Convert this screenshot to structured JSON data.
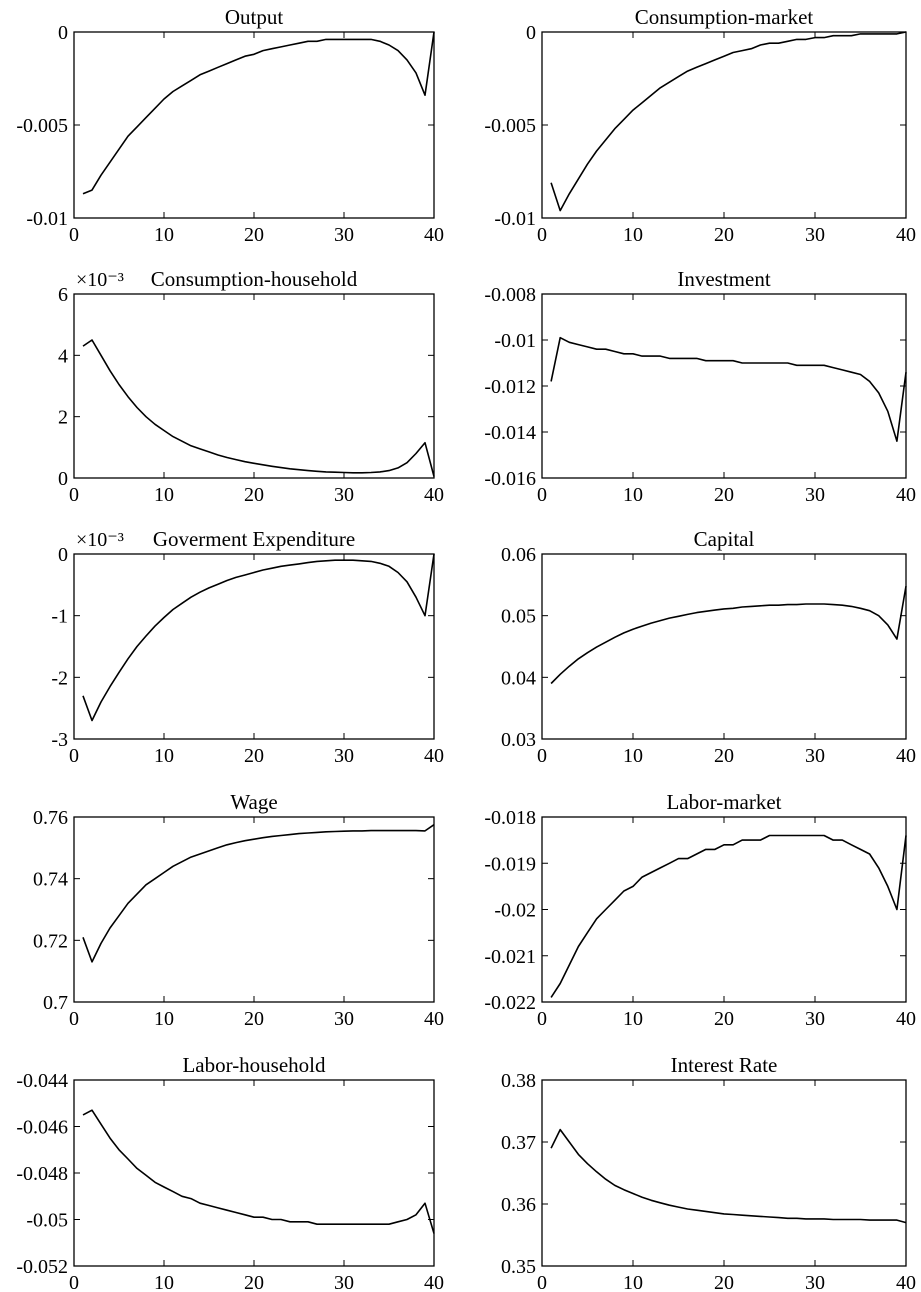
{
  "chart_data": [
    {
      "type": "line",
      "title": "Output",
      "scale_label": "",
      "xlim": [
        0,
        40
      ],
      "ylim": [
        -0.01,
        0
      ],
      "xticks": [
        "0",
        "10",
        "20",
        "30",
        "40"
      ],
      "yticks": [
        "-0.01",
        "-0.005",
        "0"
      ],
      "x": [
        1,
        2,
        3,
        4,
        5,
        6,
        7,
        8,
        9,
        10,
        11,
        12,
        13,
        14,
        15,
        16,
        17,
        18,
        19,
        20,
        21,
        22,
        23,
        24,
        25,
        26,
        27,
        28,
        29,
        30,
        31,
        32,
        33,
        34,
        35,
        36,
        37,
        38,
        39,
        40
      ],
      "y": [
        -0.0087,
        -0.0085,
        -0.0077,
        -0.007,
        -0.0063,
        -0.0056,
        -0.0051,
        -0.0046,
        -0.0041,
        -0.0036,
        -0.0032,
        -0.0029,
        -0.0026,
        -0.0023,
        -0.0021,
        -0.0019,
        -0.0017,
        -0.0015,
        -0.0013,
        -0.0012,
        -0.001,
        -0.0009,
        -0.0008,
        -0.0007,
        -0.0006,
        -0.0005,
        -0.0005,
        -0.0004,
        -0.0004,
        -0.0004,
        -0.0004,
        -0.0004,
        -0.0004,
        -0.0005,
        -0.0007,
        -0.001,
        -0.0015,
        -0.0022,
        -0.0034,
        0
      ]
    },
    {
      "type": "line",
      "title": "Consumption-market",
      "scale_label": "",
      "xlim": [
        0,
        40
      ],
      "ylim": [
        -0.01,
        0
      ],
      "xticks": [
        "0",
        "10",
        "20",
        "30",
        "40"
      ],
      "yticks": [
        "-0.01",
        "-0.005",
        "0"
      ],
      "x": [
        1,
        2,
        3,
        4,
        5,
        6,
        7,
        8,
        9,
        10,
        11,
        12,
        13,
        14,
        15,
        16,
        17,
        18,
        19,
        20,
        21,
        22,
        23,
        24,
        25,
        26,
        27,
        28,
        29,
        30,
        31,
        32,
        33,
        34,
        35,
        36,
        37,
        38,
        39,
        40
      ],
      "y": [
        -0.0081,
        -0.0096,
        -0.0087,
        -0.0079,
        -0.0071,
        -0.0064,
        -0.0058,
        -0.0052,
        -0.0047,
        -0.0042,
        -0.0038,
        -0.0034,
        -0.003,
        -0.0027,
        -0.0024,
        -0.0021,
        -0.0019,
        -0.0017,
        -0.0015,
        -0.0013,
        -0.0011,
        -0.001,
        -0.0009,
        -0.0007,
        -0.0006,
        -0.0006,
        -0.0005,
        -0.0004,
        -0.0004,
        -0.0003,
        -0.0003,
        -0.0002,
        -0.0002,
        -0.0002,
        -0.0001,
        -0.0001,
        -0.0001,
        -0.0001,
        -0.0001,
        0
      ]
    },
    {
      "type": "line",
      "title": "Consumption-household",
      "scale_label": "×10⁻³",
      "xlim": [
        0,
        40
      ],
      "ylim": [
        0,
        6
      ],
      "xticks": [
        "0",
        "10",
        "20",
        "30",
        "40"
      ],
      "yticks": [
        "0",
        "2",
        "4",
        "6"
      ],
      "x": [
        1,
        2,
        3,
        4,
        5,
        6,
        7,
        8,
        9,
        10,
        11,
        12,
        13,
        14,
        15,
        16,
        17,
        18,
        19,
        20,
        21,
        22,
        23,
        24,
        25,
        26,
        27,
        28,
        29,
        30,
        31,
        32,
        33,
        34,
        35,
        36,
        37,
        38,
        39,
        40
      ],
      "y": [
        4.3,
        4.5,
        4,
        3.5,
        3.05,
        2.65,
        2.3,
        2.0,
        1.75,
        1.55,
        1.35,
        1.2,
        1.05,
        0.95,
        0.85,
        0.75,
        0.67,
        0.6,
        0.53,
        0.48,
        0.43,
        0.38,
        0.34,
        0.3,
        0.27,
        0.24,
        0.22,
        0.2,
        0.19,
        0.18,
        0.17,
        0.17,
        0.18,
        0.2,
        0.24,
        0.33,
        0.5,
        0.8,
        1.15,
        0.05
      ]
    },
    {
      "type": "line",
      "title": "Investment",
      "scale_label": "",
      "xlim": [
        0,
        40
      ],
      "ylim": [
        -0.016,
        -0.008
      ],
      "xticks": [
        "0",
        "10",
        "20",
        "30",
        "40"
      ],
      "yticks": [
        "-0.016",
        "-0.014",
        "-0.012",
        "-0.01",
        "-0.008"
      ],
      "x": [
        1,
        2,
        3,
        4,
        5,
        6,
        7,
        8,
        9,
        10,
        11,
        12,
        13,
        14,
        15,
        16,
        17,
        18,
        19,
        20,
        21,
        22,
        23,
        24,
        25,
        26,
        27,
        28,
        29,
        30,
        31,
        32,
        33,
        34,
        35,
        36,
        37,
        38,
        39,
        40
      ],
      "y": [
        -0.0118,
        -0.0099,
        -0.0101,
        -0.0102,
        -0.0103,
        -0.0104,
        -0.0104,
        -0.0105,
        -0.0106,
        -0.0106,
        -0.0107,
        -0.0107,
        -0.0107,
        -0.0108,
        -0.0108,
        -0.0108,
        -0.0108,
        -0.0109,
        -0.0109,
        -0.0109,
        -0.0109,
        -0.011,
        -0.011,
        -0.011,
        -0.011,
        -0.011,
        -0.011,
        -0.0111,
        -0.0111,
        -0.0111,
        -0.0111,
        -0.0112,
        -0.0113,
        -0.0114,
        -0.0115,
        -0.0118,
        -0.0123,
        -0.0131,
        -0.0144,
        -0.0114
      ]
    },
    {
      "type": "line",
      "title": "Goverment Expenditure",
      "scale_label": "×10⁻³",
      "xlim": [
        0,
        40
      ],
      "ylim": [
        -3,
        0
      ],
      "xticks": [
        "0",
        "10",
        "20",
        "30",
        "40"
      ],
      "yticks": [
        "-3",
        "-2",
        "-1",
        "0"
      ],
      "x": [
        1,
        2,
        3,
        4,
        5,
        6,
        7,
        8,
        9,
        10,
        11,
        12,
        13,
        14,
        15,
        16,
        17,
        18,
        19,
        20,
        21,
        22,
        23,
        24,
        25,
        26,
        27,
        28,
        29,
        30,
        31,
        32,
        33,
        34,
        35,
        36,
        37,
        38,
        39,
        40
      ],
      "y": [
        -2.3,
        -2.7,
        -2.4,
        -2.15,
        -1.92,
        -1.7,
        -1.5,
        -1.33,
        -1.17,
        -1.03,
        -0.9,
        -0.8,
        -0.7,
        -0.62,
        -0.55,
        -0.49,
        -0.43,
        -0.38,
        -0.34,
        -0.3,
        -0.26,
        -0.23,
        -0.2,
        -0.18,
        -0.16,
        -0.14,
        -0.12,
        -0.11,
        -0.1,
        -0.1,
        -0.1,
        -0.11,
        -0.12,
        -0.15,
        -0.2,
        -0.3,
        -0.45,
        -0.7,
        -1.0,
        0
      ]
    },
    {
      "type": "line",
      "title": "Capital",
      "scale_label": "",
      "xlim": [
        0,
        40
      ],
      "ylim": [
        0.03,
        0.06
      ],
      "xticks": [
        "0",
        "10",
        "20",
        "30",
        "40"
      ],
      "yticks": [
        "0.03",
        "0.04",
        "0.05",
        "0.06"
      ],
      "x": [
        1,
        2,
        3,
        4,
        5,
        6,
        7,
        8,
        9,
        10,
        11,
        12,
        13,
        14,
        15,
        16,
        17,
        18,
        19,
        20,
        21,
        22,
        23,
        24,
        25,
        26,
        27,
        28,
        29,
        30,
        31,
        32,
        33,
        34,
        35,
        36,
        37,
        38,
        39,
        40
      ],
      "y": [
        0.039,
        0.0405,
        0.0418,
        0.043,
        0.044,
        0.0449,
        0.0457,
        0.0465,
        0.0472,
        0.0478,
        0.0483,
        0.0488,
        0.0492,
        0.0496,
        0.0499,
        0.0502,
        0.0505,
        0.0507,
        0.0509,
        0.0511,
        0.0512,
        0.0514,
        0.0515,
        0.0516,
        0.0517,
        0.0517,
        0.0518,
        0.0518,
        0.0519,
        0.0519,
        0.0519,
        0.0518,
        0.0517,
        0.0515,
        0.0512,
        0.0508,
        0.05,
        0.0485,
        0.0462,
        0.0548
      ]
    },
    {
      "type": "line",
      "title": "Wage",
      "scale_label": "",
      "xlim": [
        0,
        40
      ],
      "ylim": [
        0.7,
        0.76
      ],
      "xticks": [
        "0",
        "10",
        "20",
        "30",
        "40"
      ],
      "yticks": [
        "0.7",
        "0.72",
        "0.74",
        "0.76"
      ],
      "x": [
        1,
        2,
        3,
        4,
        5,
        6,
        7,
        8,
        9,
        10,
        11,
        12,
        13,
        14,
        15,
        16,
        17,
        18,
        19,
        20,
        21,
        22,
        23,
        24,
        25,
        26,
        27,
        28,
        29,
        30,
        31,
        32,
        33,
        34,
        35,
        36,
        37,
        38,
        39,
        40
      ],
      "y": [
        0.721,
        0.713,
        0.719,
        0.724,
        0.728,
        0.732,
        0.735,
        0.738,
        0.74,
        0.742,
        0.744,
        0.7455,
        0.747,
        0.748,
        0.749,
        0.75,
        0.751,
        0.7517,
        0.7523,
        0.7528,
        0.7533,
        0.7537,
        0.754,
        0.7543,
        0.7546,
        0.7548,
        0.755,
        0.7552,
        0.7553,
        0.7554,
        0.7555,
        0.7555,
        0.7556,
        0.7556,
        0.7556,
        0.7556,
        0.7556,
        0.7556,
        0.7555,
        0.7575
      ]
    },
    {
      "type": "line",
      "title": "Labor-market",
      "scale_label": "",
      "xlim": [
        0,
        40
      ],
      "ylim": [
        -0.022,
        -0.018
      ],
      "xticks": [
        "0",
        "10",
        "20",
        "30",
        "40"
      ],
      "yticks": [
        "-0.022",
        "-0.021",
        "-0.02",
        "-0.019",
        "-0.018"
      ],
      "x": [
        1,
        2,
        3,
        4,
        5,
        6,
        7,
        8,
        9,
        10,
        11,
        12,
        13,
        14,
        15,
        16,
        17,
        18,
        19,
        20,
        21,
        22,
        23,
        24,
        25,
        26,
        27,
        28,
        29,
        30,
        31,
        32,
        33,
        34,
        35,
        36,
        37,
        38,
        39,
        40
      ],
      "y": [
        -0.0219,
        -0.0216,
        -0.0212,
        -0.0208,
        -0.0205,
        -0.0202,
        -0.02,
        -0.0198,
        -0.0196,
        -0.0195,
        -0.0193,
        -0.0192,
        -0.0191,
        -0.019,
        -0.0189,
        -0.0189,
        -0.0188,
        -0.0187,
        -0.0187,
        -0.0186,
        -0.0186,
        -0.0185,
        -0.0185,
        -0.0185,
        -0.0184,
        -0.0184,
        -0.0184,
        -0.0184,
        -0.0184,
        -0.0184,
        -0.0184,
        -0.0185,
        -0.0185,
        -0.0186,
        -0.0187,
        -0.0188,
        -0.0191,
        -0.0195,
        -0.02,
        -0.0184
      ]
    },
    {
      "type": "line",
      "title": "Labor-household",
      "scale_label": "",
      "xlim": [
        0,
        40
      ],
      "ylim": [
        -0.052,
        -0.044
      ],
      "xticks": [
        "0",
        "10",
        "20",
        "30",
        "40"
      ],
      "yticks": [
        "-0.052",
        "-0.05",
        "-0.048",
        "-0.046",
        "-0.044"
      ],
      "x": [
        1,
        2,
        3,
        4,
        5,
        6,
        7,
        8,
        9,
        10,
        11,
        12,
        13,
        14,
        15,
        16,
        17,
        18,
        19,
        20,
        21,
        22,
        23,
        24,
        25,
        26,
        27,
        28,
        29,
        30,
        31,
        32,
        33,
        34,
        35,
        36,
        37,
        38,
        39,
        40
      ],
      "y": [
        -0.0455,
        -0.0453,
        -0.0459,
        -0.0465,
        -0.047,
        -0.0474,
        -0.0478,
        -0.0481,
        -0.0484,
        -0.0486,
        -0.0488,
        -0.049,
        -0.0491,
        -0.0493,
        -0.0494,
        -0.0495,
        -0.0496,
        -0.0497,
        -0.0498,
        -0.0499,
        -0.0499,
        -0.05,
        -0.05,
        -0.0501,
        -0.0501,
        -0.0501,
        -0.0502,
        -0.0502,
        -0.0502,
        -0.0502,
        -0.0502,
        -0.0502,
        -0.0502,
        -0.0502,
        -0.0502,
        -0.0501,
        -0.05,
        -0.0498,
        -0.0493,
        -0.0506
      ]
    },
    {
      "type": "line",
      "title": "Interest Rate",
      "scale_label": "",
      "xlim": [
        0,
        40
      ],
      "ylim": [
        0.35,
        0.38
      ],
      "xticks": [
        "0",
        "10",
        "20",
        "30",
        "40"
      ],
      "yticks": [
        "0.35",
        "0.36",
        "0.37",
        "0.38"
      ],
      "x": [
        1,
        2,
        3,
        4,
        5,
        6,
        7,
        8,
        9,
        10,
        11,
        12,
        13,
        14,
        15,
        16,
        17,
        18,
        19,
        20,
        21,
        22,
        23,
        24,
        25,
        26,
        27,
        28,
        29,
        30,
        31,
        32,
        33,
        34,
        35,
        36,
        37,
        38,
        39,
        40
      ],
      "y": [
        0.369,
        0.372,
        0.37,
        0.368,
        0.3665,
        0.3652,
        0.364,
        0.363,
        0.3623,
        0.3617,
        0.3611,
        0.3606,
        0.3602,
        0.3598,
        0.3595,
        0.3592,
        0.359,
        0.3588,
        0.3586,
        0.3584,
        0.3583,
        0.3582,
        0.3581,
        0.358,
        0.3579,
        0.3578,
        0.3577,
        0.3577,
        0.3576,
        0.3576,
        0.3576,
        0.3575,
        0.3575,
        0.3575,
        0.3575,
        0.3574,
        0.3574,
        0.3574,
        0.3574,
        0.357
      ]
    }
  ]
}
